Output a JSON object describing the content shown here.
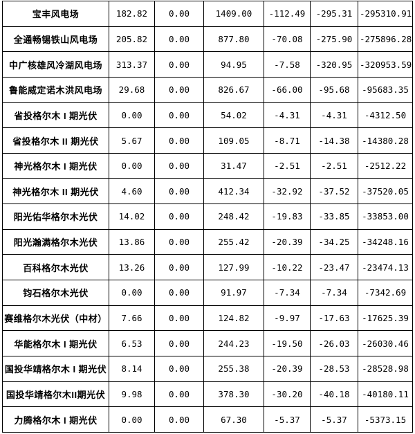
{
  "colors": {
    "background": "#ffffff",
    "border": "#000000",
    "text": "#000000"
  },
  "table": {
    "description": "power-plant-settlement-table",
    "column_count": 7,
    "rows": [
      {
        "name": "宝丰风电场",
        "values": [
          "182.82",
          "0.00",
          "1409.00",
          "-112.49",
          "-295.31",
          "-295310.91"
        ]
      },
      {
        "name": "全通畅锡铁山风电场",
        "values": [
          "205.82",
          "0.00",
          "877.80",
          "-70.08",
          "-275.90",
          "-275896.28"
        ]
      },
      {
        "name": "中广核雄风冷湖风电场",
        "values": [
          "313.37",
          "0.00",
          "94.95",
          "-7.58",
          "-320.95",
          "-320953.59"
        ]
      },
      {
        "name": "鲁能威定诺木洪风电场",
        "values": [
          "29.68",
          "0.00",
          "826.67",
          "-66.00",
          "-95.68",
          "-95683.35"
        ]
      },
      {
        "name": "省投格尔木 I 期光伏",
        "values": [
          "0.00",
          "0.00",
          "54.02",
          "-4.31",
          "-4.31",
          "-4312.50"
        ]
      },
      {
        "name": "省投格尔木 II 期光伏",
        "values": [
          "5.67",
          "0.00",
          "109.05",
          "-8.71",
          "-14.38",
          "-14380.28"
        ]
      },
      {
        "name": "神光格尔木 I 期光伏",
        "values": [
          "0.00",
          "0.00",
          "31.47",
          "-2.51",
          "-2.51",
          "-2512.22"
        ]
      },
      {
        "name": "神光格尔木 II 期光伏",
        "values": [
          "4.60",
          "0.00",
          "412.34",
          "-32.92",
          "-37.52",
          "-37520.05"
        ]
      },
      {
        "name": "阳光佑华格尔木光伏",
        "values": [
          "14.02",
          "0.00",
          "248.42",
          "-19.83",
          "-33.85",
          "-33853.00"
        ]
      },
      {
        "name": "阳光瀚满格尔木光伏",
        "values": [
          "13.86",
          "0.00",
          "255.42",
          "-20.39",
          "-34.25",
          "-34248.16"
        ]
      },
      {
        "name": "百科格尔木光伏",
        "values": [
          "13.26",
          "0.00",
          "127.99",
          "-10.22",
          "-23.47",
          "-23474.13"
        ]
      },
      {
        "name": "钧石格尔木光伏",
        "values": [
          "0.00",
          "0.00",
          "91.97",
          "-7.34",
          "-7.34",
          "-7342.69"
        ]
      },
      {
        "name": "赛维格尔木光伏（中材）",
        "values": [
          "7.66",
          "0.00",
          "124.82",
          "-9.97",
          "-17.63",
          "-17625.39"
        ]
      },
      {
        "name": "华能格尔木 I 期光伏",
        "values": [
          "6.53",
          "0.00",
          "244.23",
          "-19.50",
          "-26.03",
          "-26030.46"
        ]
      },
      {
        "name": "国投华靖格尔木 I 期光伏",
        "values": [
          "8.14",
          "0.00",
          "255.38",
          "-20.39",
          "-28.53",
          "-28528.98"
        ]
      },
      {
        "name": "国投华靖格尔木II期光伏",
        "values": [
          "9.98",
          "0.00",
          "378.30",
          "-30.20",
          "-40.18",
          "-40180.11"
        ]
      },
      {
        "name": "力腾格尔木 I 期光伏",
        "values": [
          "0.00",
          "0.00",
          "67.30",
          "-5.37",
          "-5.37",
          "-5373.15"
        ]
      }
    ]
  }
}
